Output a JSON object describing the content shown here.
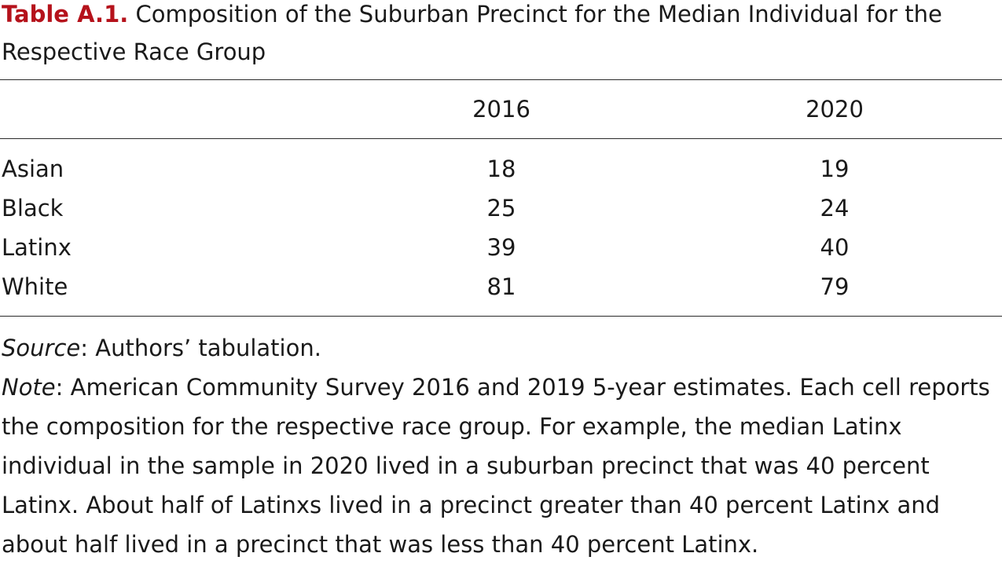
{
  "caption": {
    "label": "Table A.1.",
    "title": " Composition of the Suburban Precinct for the Median Individual for the Respective Race Group"
  },
  "table": {
    "columns": [
      "",
      "2016",
      "2020"
    ],
    "rows": [
      {
        "group": "Asian",
        "y2016": "18",
        "y2020": "19"
      },
      {
        "group": "Black",
        "y2016": "25",
        "y2020": "24"
      },
      {
        "group": "Latinx",
        "y2016": "39",
        "y2020": "40"
      },
      {
        "group": "White",
        "y2016": "81",
        "y2020": "79"
      }
    ]
  },
  "notes": {
    "source_label": "Source",
    "source_text": ": Authors’ tabulation.",
    "note_label": "Note",
    "note_text": ": American Community Survey 2016 and 2019 5-year estimates. Each cell reports the composition for the respective race group. For example, the median Latinx individual in the sample in 2020 lived in a suburban precinct that was 40 percent Latinx. About half of Latinxs lived in a precinct greater than 40 percent Latinx and about half lived in a precinct that was less than 40 percent Latinx."
  },
  "colors": {
    "accent": "#b5121b",
    "text": "#1a1a1a"
  }
}
